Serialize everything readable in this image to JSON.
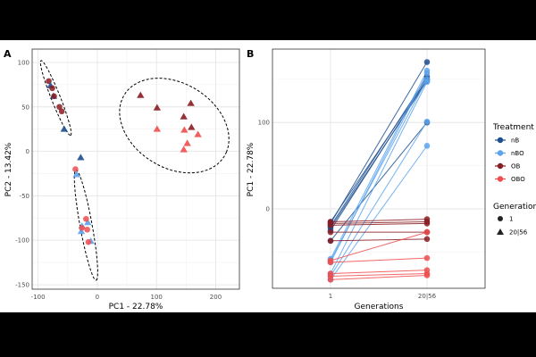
{
  "colors": {
    "nB": "#1d4f8f",
    "nBO": "#5ba3ef",
    "OB": "#8a1c22",
    "OBO": "#f04c4c"
  },
  "chart_data": [
    {
      "panel": "A",
      "type": "scatter",
      "xlabel": "PC1 - 22.78%",
      "ylabel": "PC2 - 13.42%",
      "xlim": [
        -110,
        240
      ],
      "ylim": [
        -155,
        115
      ],
      "xticks": [
        -100,
        0,
        100,
        200
      ],
      "yticks": [
        100,
        50,
        0,
        -50,
        -100,
        -150
      ],
      "grid": true,
      "points": [
        {
          "t": "OB",
          "g": "1",
          "x": -82,
          "y": 79
        },
        {
          "t": "nB",
          "g": "20|56",
          "x": -79,
          "y": 74
        },
        {
          "t": "OB",
          "g": "1",
          "x": -76,
          "y": 71
        },
        {
          "t": "nB",
          "g": "20|56",
          "x": -74,
          "y": 62
        },
        {
          "t": "OB",
          "g": "1",
          "x": -73,
          "y": 62
        },
        {
          "t": "OB",
          "g": "1",
          "x": -64,
          "y": 50
        },
        {
          "t": "OB",
          "g": "1",
          "x": -60,
          "y": 45
        },
        {
          "t": "nB",
          "g": "20|56",
          "x": -56,
          "y": 25
        },
        {
          "t": "nB",
          "g": "20|56",
          "x": -28,
          "y": -7
        },
        {
          "t": "OBO",
          "g": "1",
          "x": -37,
          "y": -20
        },
        {
          "t": "nBO",
          "g": "20|56",
          "x": -35,
          "y": -26
        },
        {
          "t": "nBO",
          "g": "20|56",
          "x": -16,
          "y": -80
        },
        {
          "t": "nBO",
          "g": "20|56",
          "x": -26,
          "y": -84
        },
        {
          "t": "nBO",
          "g": "20|56",
          "x": -27,
          "y": -90
        },
        {
          "t": "nBO",
          "g": "20|56",
          "x": -11,
          "y": -101
        },
        {
          "t": "OBO",
          "g": "1",
          "x": -19,
          "y": -76
        },
        {
          "t": "OBO",
          "g": "1",
          "x": -26,
          "y": -86
        },
        {
          "t": "OBO",
          "g": "1",
          "x": -17,
          "y": -88
        },
        {
          "t": "OBO",
          "g": "1",
          "x": -15,
          "y": -102
        },
        {
          "t": "OB",
          "g": "20|56",
          "x": 73,
          "y": 63
        },
        {
          "t": "OB",
          "g": "20|56",
          "x": 101,
          "y": 49
        },
        {
          "t": "OB",
          "g": "20|56",
          "x": 158,
          "y": 54
        },
        {
          "t": "OB",
          "g": "20|56",
          "x": 146,
          "y": 39
        },
        {
          "t": "OB",
          "g": "20|56",
          "x": 159,
          "y": 27
        },
        {
          "t": "OBO",
          "g": "20|56",
          "x": 101,
          "y": 25
        },
        {
          "t": "OBO",
          "g": "20|56",
          "x": 147,
          "y": 24
        },
        {
          "t": "OBO",
          "g": "20|56",
          "x": 170,
          "y": 19
        },
        {
          "t": "OBO",
          "g": "20|56",
          "x": 152,
          "y": 9
        },
        {
          "t": "OBO",
          "g": "20|56",
          "x": 146,
          "y": 2
        }
      ],
      "ellipses": [
        {
          "c": [
            -70,
            60
          ],
          "a": [
            25,
            -42
          ],
          "b": [
            7,
            2
          ]
        },
        {
          "c": [
            -19,
            -83
          ],
          "a": [
            17,
            -62
          ],
          "b": [
            10,
            1.3
          ]
        },
        {
          "c": [
            130,
            29
          ],
          "a": [
            88,
            -30
          ],
          "b": [
            28,
            44
          ]
        }
      ]
    },
    {
      "panel": "B",
      "type": "line",
      "xlabel": "Generations",
      "ylabel": "PC1 - 22.78%",
      "categories": [
        "1",
        "20|56"
      ],
      "ylim": [
        -92,
        185
      ],
      "yticks": [
        100,
        0
      ],
      "grid": true,
      "series": [
        {
          "name": "nB",
          "pairs": [
            [
              -17,
              170
            ],
            [
              -20,
              153
            ],
            [
              -15,
              150
            ],
            [
              -22,
              148
            ],
            [
              -25,
              150
            ],
            [
              -37,
              100
            ]
          ]
        },
        {
          "name": "nBO",
          "pairs": [
            [
              -58,
              160
            ],
            [
              -62,
              157
            ],
            [
              -60,
              150
            ],
            [
              -75,
              147
            ],
            [
              -78,
              101
            ],
            [
              -82,
              73
            ]
          ]
        },
        {
          "name": "OB",
          "pairs": [
            [
              -15,
              -12
            ],
            [
              -17,
              -15
            ],
            [
              -19,
              -17
            ],
            [
              -27,
              -27
            ],
            [
              -37,
              -35
            ]
          ]
        },
        {
          "name": "OBO",
          "pairs": [
            [
              -60,
              -27
            ],
            [
              -62,
              -57
            ],
            [
              -75,
              -71
            ],
            [
              -78,
              -75
            ],
            [
              -82,
              -77
            ]
          ]
        }
      ]
    }
  ],
  "legend": {
    "treatment_title": "Treatment",
    "treatments": [
      "nB",
      "nBO",
      "OB",
      "OBO"
    ],
    "generation_title": "Generation",
    "generations": [
      "1",
      "20|56"
    ],
    "placement": "right"
  }
}
